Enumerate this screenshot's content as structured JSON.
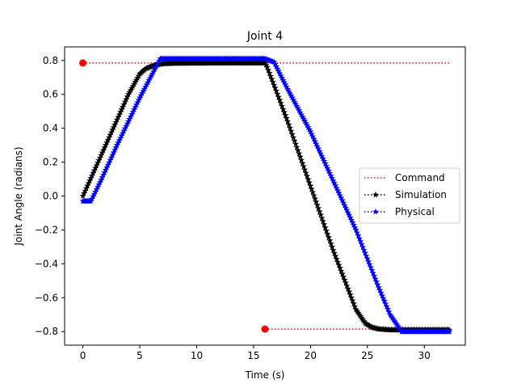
{
  "chart_data": {
    "type": "line",
    "title": "Joint 4",
    "xlabel": "Time (s)",
    "ylabel": "Joint Angle (radians)",
    "xlim": [
      -1.6,
      33.6
    ],
    "ylim": [
      -0.88,
      0.88
    ],
    "xticks": [
      0,
      5,
      10,
      15,
      20,
      25,
      30
    ],
    "yticks": [
      -0.8,
      -0.6,
      -0.4,
      -0.2,
      0.0,
      0.2,
      0.4,
      0.6,
      0.8
    ],
    "xtick_labels": [
      "0",
      "5",
      "10",
      "15",
      "20",
      "25",
      "30"
    ],
    "ytick_labels": [
      "−0.8",
      "−0.6",
      "−0.4",
      "−0.2",
      "0.0",
      "0.2",
      "0.4",
      "0.6",
      "0.8"
    ],
    "grid": false,
    "legend_position": "center-right",
    "series": [
      {
        "name": "Command",
        "style": "dotted",
        "color": "#ff0000",
        "segments": [
          {
            "x": [
              0,
              32.2
            ],
            "y": [
              0.785,
              0.785
            ]
          },
          {
            "x": [
              16,
              32.2
            ],
            "y": [
              -0.785,
              -0.785
            ]
          }
        ],
        "markers": [
          {
            "x": 0,
            "y": 0.785
          },
          {
            "x": 16,
            "y": -0.785
          }
        ]
      },
      {
        "name": "Simulation",
        "style": "dotted-star",
        "color": "#000000",
        "x": [
          0,
          2,
          4,
          5,
          5.5,
          6,
          6.5,
          7,
          8,
          12,
          16,
          16.2,
          17,
          18,
          20,
          22,
          24,
          24.8,
          25.4,
          26,
          27,
          28,
          30,
          32.2
        ],
        "y": [
          0.0,
          0.3,
          0.6,
          0.72,
          0.75,
          0.765,
          0.775,
          0.78,
          0.783,
          0.785,
          0.785,
          0.76,
          0.62,
          0.44,
          0.06,
          -0.32,
          -0.67,
          -0.75,
          -0.775,
          -0.785,
          -0.79,
          -0.79,
          -0.79,
          -0.79
        ]
      },
      {
        "name": "Physical",
        "style": "dotted-star",
        "color": "#0000ff",
        "x": [
          0,
          0.7,
          1.5,
          3,
          5,
          6.8,
          8,
          12,
          16,
          16.8,
          18,
          20,
          22,
          24,
          26,
          27,
          28,
          30,
          32.2
        ],
        "y": [
          -0.03,
          -0.03,
          0.08,
          0.3,
          0.58,
          0.81,
          0.81,
          0.81,
          0.81,
          0.79,
          0.63,
          0.38,
          0.09,
          -0.2,
          -0.54,
          -0.7,
          -0.8,
          -0.8,
          -0.8
        ]
      }
    ]
  }
}
